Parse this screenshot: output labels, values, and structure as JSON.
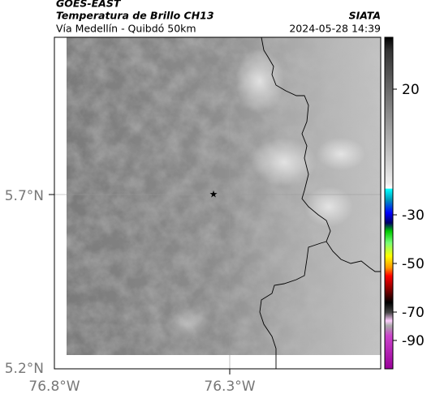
{
  "header": {
    "product": "GOES-EAST",
    "title": "Temperatura de Brillo CH13",
    "source": "SIATA",
    "region": "Vía Medellín - Quibdó 50km",
    "timestamp": "2024-05-28 14:39"
  },
  "map": {
    "lat_labels": [
      "5.7°N",
      "5.2°N"
    ],
    "lon_labels": [
      "76.8°W",
      "76.3°W"
    ]
  },
  "colorbar": {
    "ticks": [
      20,
      -30,
      -50,
      -70,
      -90
    ]
  }
}
